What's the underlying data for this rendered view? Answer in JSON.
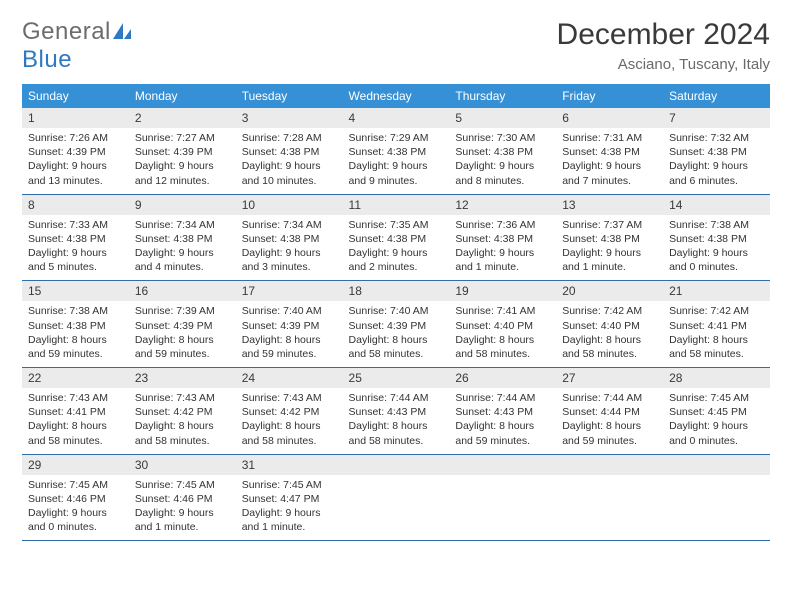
{
  "logo": {
    "word1": "General",
    "word2": "Blue"
  },
  "title": "December 2024",
  "location": "Asciano, Tuscany, Italy",
  "colors": {
    "header_bg": "#3690d6",
    "header_text": "#ffffff",
    "daynum_bg": "#ebebeb",
    "rule": "#2f6fa8",
    "logo_gray": "#6d6d6d",
    "logo_blue": "#2f78c3"
  },
  "typography": {
    "title_fontsize": 30,
    "location_fontsize": 15,
    "dayheader_fontsize": 12,
    "daynum_fontsize": 12,
    "body_fontsize": 10.5
  },
  "day_headers": [
    "Sunday",
    "Monday",
    "Tuesday",
    "Wednesday",
    "Thursday",
    "Friday",
    "Saturday"
  ],
  "weeks": [
    [
      {
        "n": "1",
        "sunrise": "Sunrise: 7:26 AM",
        "sunset": "Sunset: 4:39 PM",
        "day1": "Daylight: 9 hours",
        "day2": "and 13 minutes."
      },
      {
        "n": "2",
        "sunrise": "Sunrise: 7:27 AM",
        "sunset": "Sunset: 4:39 PM",
        "day1": "Daylight: 9 hours",
        "day2": "and 12 minutes."
      },
      {
        "n": "3",
        "sunrise": "Sunrise: 7:28 AM",
        "sunset": "Sunset: 4:38 PM",
        "day1": "Daylight: 9 hours",
        "day2": "and 10 minutes."
      },
      {
        "n": "4",
        "sunrise": "Sunrise: 7:29 AM",
        "sunset": "Sunset: 4:38 PM",
        "day1": "Daylight: 9 hours",
        "day2": "and 9 minutes."
      },
      {
        "n": "5",
        "sunrise": "Sunrise: 7:30 AM",
        "sunset": "Sunset: 4:38 PM",
        "day1": "Daylight: 9 hours",
        "day2": "and 8 minutes."
      },
      {
        "n": "6",
        "sunrise": "Sunrise: 7:31 AM",
        "sunset": "Sunset: 4:38 PM",
        "day1": "Daylight: 9 hours",
        "day2": "and 7 minutes."
      },
      {
        "n": "7",
        "sunrise": "Sunrise: 7:32 AM",
        "sunset": "Sunset: 4:38 PM",
        "day1": "Daylight: 9 hours",
        "day2": "and 6 minutes."
      }
    ],
    [
      {
        "n": "8",
        "sunrise": "Sunrise: 7:33 AM",
        "sunset": "Sunset: 4:38 PM",
        "day1": "Daylight: 9 hours",
        "day2": "and 5 minutes."
      },
      {
        "n": "9",
        "sunrise": "Sunrise: 7:34 AM",
        "sunset": "Sunset: 4:38 PM",
        "day1": "Daylight: 9 hours",
        "day2": "and 4 minutes."
      },
      {
        "n": "10",
        "sunrise": "Sunrise: 7:34 AM",
        "sunset": "Sunset: 4:38 PM",
        "day1": "Daylight: 9 hours",
        "day2": "and 3 minutes."
      },
      {
        "n": "11",
        "sunrise": "Sunrise: 7:35 AM",
        "sunset": "Sunset: 4:38 PM",
        "day1": "Daylight: 9 hours",
        "day2": "and 2 minutes."
      },
      {
        "n": "12",
        "sunrise": "Sunrise: 7:36 AM",
        "sunset": "Sunset: 4:38 PM",
        "day1": "Daylight: 9 hours",
        "day2": "and 1 minute."
      },
      {
        "n": "13",
        "sunrise": "Sunrise: 7:37 AM",
        "sunset": "Sunset: 4:38 PM",
        "day1": "Daylight: 9 hours",
        "day2": "and 1 minute."
      },
      {
        "n": "14",
        "sunrise": "Sunrise: 7:38 AM",
        "sunset": "Sunset: 4:38 PM",
        "day1": "Daylight: 9 hours",
        "day2": "and 0 minutes."
      }
    ],
    [
      {
        "n": "15",
        "sunrise": "Sunrise: 7:38 AM",
        "sunset": "Sunset: 4:38 PM",
        "day1": "Daylight: 8 hours",
        "day2": "and 59 minutes."
      },
      {
        "n": "16",
        "sunrise": "Sunrise: 7:39 AM",
        "sunset": "Sunset: 4:39 PM",
        "day1": "Daylight: 8 hours",
        "day2": "and 59 minutes."
      },
      {
        "n": "17",
        "sunrise": "Sunrise: 7:40 AM",
        "sunset": "Sunset: 4:39 PM",
        "day1": "Daylight: 8 hours",
        "day2": "and 59 minutes."
      },
      {
        "n": "18",
        "sunrise": "Sunrise: 7:40 AM",
        "sunset": "Sunset: 4:39 PM",
        "day1": "Daylight: 8 hours",
        "day2": "and 58 minutes."
      },
      {
        "n": "19",
        "sunrise": "Sunrise: 7:41 AM",
        "sunset": "Sunset: 4:40 PM",
        "day1": "Daylight: 8 hours",
        "day2": "and 58 minutes."
      },
      {
        "n": "20",
        "sunrise": "Sunrise: 7:42 AM",
        "sunset": "Sunset: 4:40 PM",
        "day1": "Daylight: 8 hours",
        "day2": "and 58 minutes."
      },
      {
        "n": "21",
        "sunrise": "Sunrise: 7:42 AM",
        "sunset": "Sunset: 4:41 PM",
        "day1": "Daylight: 8 hours",
        "day2": "and 58 minutes."
      }
    ],
    [
      {
        "n": "22",
        "sunrise": "Sunrise: 7:43 AM",
        "sunset": "Sunset: 4:41 PM",
        "day1": "Daylight: 8 hours",
        "day2": "and 58 minutes."
      },
      {
        "n": "23",
        "sunrise": "Sunrise: 7:43 AM",
        "sunset": "Sunset: 4:42 PM",
        "day1": "Daylight: 8 hours",
        "day2": "and 58 minutes."
      },
      {
        "n": "24",
        "sunrise": "Sunrise: 7:43 AM",
        "sunset": "Sunset: 4:42 PM",
        "day1": "Daylight: 8 hours",
        "day2": "and 58 minutes."
      },
      {
        "n": "25",
        "sunrise": "Sunrise: 7:44 AM",
        "sunset": "Sunset: 4:43 PM",
        "day1": "Daylight: 8 hours",
        "day2": "and 58 minutes."
      },
      {
        "n": "26",
        "sunrise": "Sunrise: 7:44 AM",
        "sunset": "Sunset: 4:43 PM",
        "day1": "Daylight: 8 hours",
        "day2": "and 59 minutes."
      },
      {
        "n": "27",
        "sunrise": "Sunrise: 7:44 AM",
        "sunset": "Sunset: 4:44 PM",
        "day1": "Daylight: 8 hours",
        "day2": "and 59 minutes."
      },
      {
        "n": "28",
        "sunrise": "Sunrise: 7:45 AM",
        "sunset": "Sunset: 4:45 PM",
        "day1": "Daylight: 9 hours",
        "day2": "and 0 minutes."
      }
    ],
    [
      {
        "n": "29",
        "sunrise": "Sunrise: 7:45 AM",
        "sunset": "Sunset: 4:46 PM",
        "day1": "Daylight: 9 hours",
        "day2": "and 0 minutes."
      },
      {
        "n": "30",
        "sunrise": "Sunrise: 7:45 AM",
        "sunset": "Sunset: 4:46 PM",
        "day1": "Daylight: 9 hours",
        "day2": "and 1 minute."
      },
      {
        "n": "31",
        "sunrise": "Sunrise: 7:45 AM",
        "sunset": "Sunset: 4:47 PM",
        "day1": "Daylight: 9 hours",
        "day2": "and 1 minute."
      },
      null,
      null,
      null,
      null
    ]
  ]
}
